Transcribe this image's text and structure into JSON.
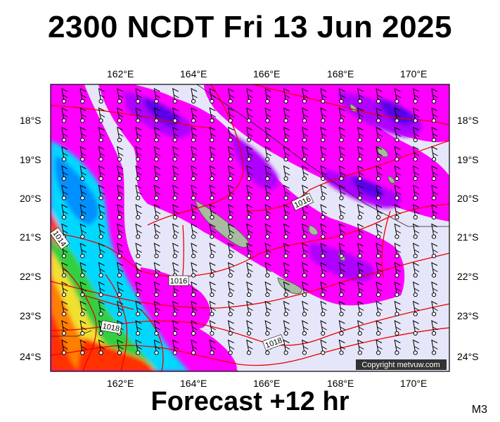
{
  "header": {
    "title": "2300 NCDT Fri 13 Jun 2025"
  },
  "footer": {
    "forecast": "Forecast +12 hr",
    "code": "M3"
  },
  "map": {
    "copyright": "Copyright metvuw.com",
    "lon_ticks": [
      "162°E",
      "164°E",
      "166°E",
      "168°E",
      "170°E"
    ],
    "lat_ticks": [
      "18°S",
      "19°S",
      "20°S",
      "21°S",
      "22°S",
      "23°S",
      "24°S"
    ],
    "isobar_labels": [
      "1016",
      "1014",
      "1016",
      "1018",
      "1018"
    ],
    "colors": {
      "background": "#e6e6fa",
      "rain_light": "#ff00ff",
      "rain_moderate": "#b000ff",
      "rain_heavy": "#5a00e8",
      "cyan": "#00d8ff",
      "green": "#30d040",
      "yellow": "#f0e030",
      "orange": "#ff8000",
      "red_heavy": "#ff3300",
      "isobar": "#ee0000",
      "land": "#a8bba0"
    }
  }
}
